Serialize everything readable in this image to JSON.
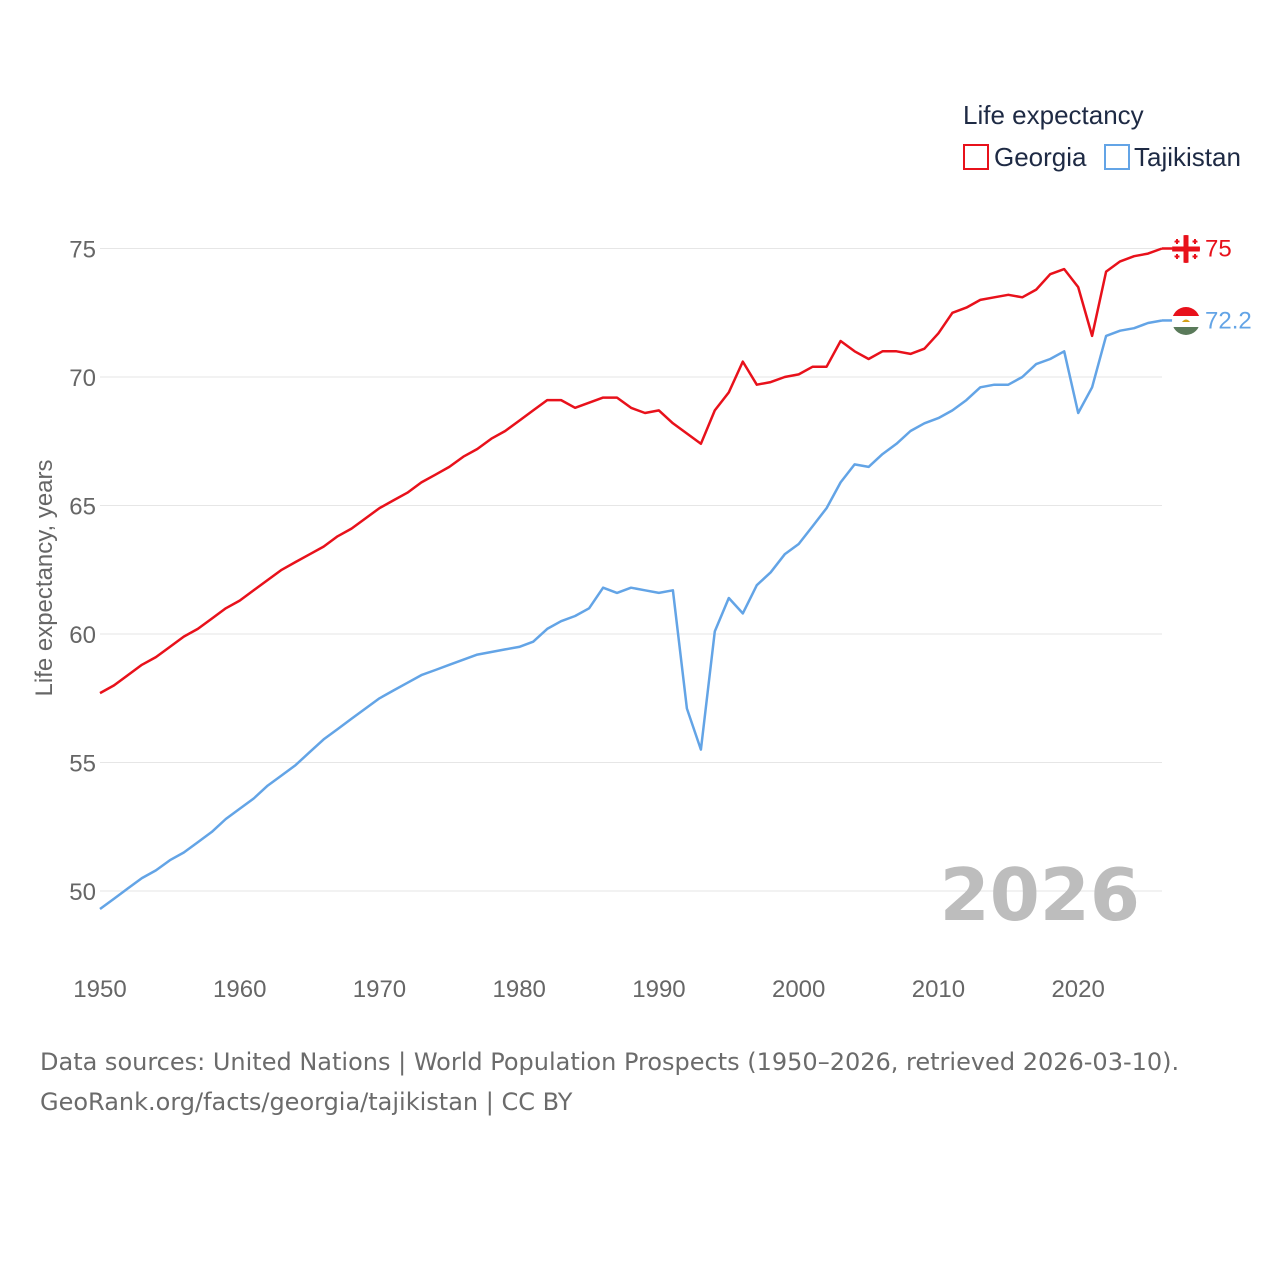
{
  "chart_data": {
    "type": "line",
    "title": "",
    "xlabel": "",
    "ylabel": "Life expectancy, years",
    "xlim": [
      1950,
      2026
    ],
    "ylim": [
      48,
      77
    ],
    "x_ticks": [
      1950,
      1960,
      1970,
      1980,
      1990,
      2000,
      2010,
      2020
    ],
    "y_ticks": [
      50,
      55,
      60,
      65,
      70,
      75
    ],
    "grid": true,
    "legend": {
      "title": "Life expectancy",
      "position": "top-right"
    },
    "year_label": "2026",
    "x": [
      1950,
      1951,
      1952,
      1953,
      1954,
      1955,
      1956,
      1957,
      1958,
      1959,
      1960,
      1961,
      1962,
      1963,
      1964,
      1965,
      1966,
      1967,
      1968,
      1969,
      1970,
      1971,
      1972,
      1973,
      1974,
      1975,
      1976,
      1977,
      1978,
      1979,
      1980,
      1981,
      1982,
      1983,
      1984,
      1985,
      1986,
      1987,
      1988,
      1989,
      1990,
      1991,
      1992,
      1993,
      1994,
      1995,
      1996,
      1997,
      1998,
      1999,
      2000,
      2001,
      2002,
      2003,
      2004,
      2005,
      2006,
      2007,
      2008,
      2009,
      2010,
      2011,
      2012,
      2013,
      2014,
      2015,
      2016,
      2017,
      2018,
      2019,
      2020,
      2021,
      2022,
      2023,
      2024,
      2025,
      2026
    ],
    "series": [
      {
        "name": "Georgia",
        "color": "#e8111b",
        "end_label": "75",
        "values": [
          57.7,
          58.0,
          58.4,
          58.8,
          59.1,
          59.5,
          59.9,
          60.2,
          60.6,
          61.0,
          61.3,
          61.7,
          62.1,
          62.5,
          62.8,
          63.1,
          63.4,
          63.8,
          64.1,
          64.5,
          64.9,
          65.2,
          65.5,
          65.9,
          66.2,
          66.5,
          66.9,
          67.2,
          67.6,
          67.9,
          68.3,
          68.7,
          69.1,
          69.1,
          68.8,
          69.0,
          69.2,
          69.2,
          68.8,
          68.6,
          68.7,
          68.2,
          67.8,
          67.4,
          68.7,
          69.4,
          70.6,
          69.7,
          69.8,
          70.0,
          70.1,
          70.4,
          70.4,
          71.4,
          71.0,
          70.7,
          71.0,
          71.0,
          70.9,
          71.1,
          71.7,
          72.5,
          72.7,
          73.0,
          73.1,
          73.2,
          73.1,
          73.4,
          74.0,
          74.2,
          73.5,
          71.6,
          74.1,
          74.5,
          74.7,
          74.8,
          75.0
        ]
      },
      {
        "name": "Tajikistan",
        "color": "#63a4e6",
        "end_label": "72.2",
        "values": [
          49.3,
          49.7,
          50.1,
          50.5,
          50.8,
          51.2,
          51.5,
          51.9,
          52.3,
          52.8,
          53.2,
          53.6,
          54.1,
          54.5,
          54.9,
          55.4,
          55.9,
          56.3,
          56.7,
          57.1,
          57.5,
          57.8,
          58.1,
          58.4,
          58.6,
          58.8,
          59.0,
          59.2,
          59.3,
          59.4,
          59.5,
          59.7,
          60.2,
          60.5,
          60.7,
          61.0,
          61.8,
          61.6,
          61.8,
          61.7,
          61.6,
          61.7,
          57.1,
          55.5,
          60.1,
          61.4,
          60.8,
          61.9,
          62.4,
          63.1,
          63.5,
          64.2,
          64.9,
          65.9,
          66.6,
          66.5,
          67.0,
          67.4,
          67.9,
          68.2,
          68.4,
          68.7,
          69.1,
          69.6,
          69.7,
          69.7,
          70.0,
          70.5,
          70.7,
          71.0,
          68.6,
          69.6,
          71.6,
          71.8,
          71.9,
          72.1,
          72.2
        ]
      }
    ]
  },
  "footer": {
    "line1": "Data sources: United Nations | World Population Prospects (1950–2026, retrieved 2026-03-10).",
    "line2": "GeoRank.org/facts/georgia/tajikistan | CC BY"
  },
  "flags": {
    "georgia_icon": "georgia-flag-icon",
    "tajikistan_icon": "tajikistan-flag-icon"
  }
}
